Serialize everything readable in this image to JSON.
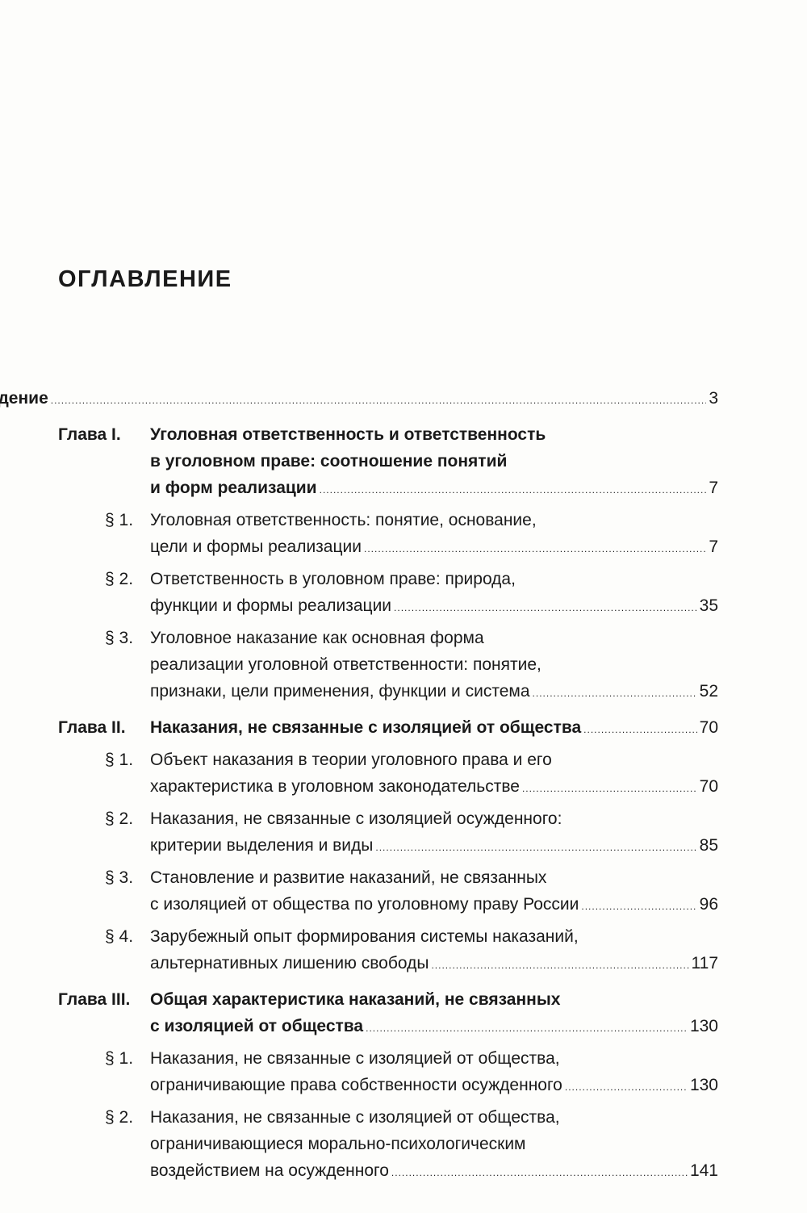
{
  "title": "ОГЛАВЛЕНИЕ",
  "entries": [
    {
      "type": "intro",
      "label": "",
      "lines": [
        "Введение"
      ],
      "page": "3"
    },
    {
      "type": "chapter",
      "label": "Глава I.",
      "lines": [
        "Уголовная ответственность и ответственность",
        "в уголовном праве: соотношение понятий",
        "и форм реализации"
      ],
      "page": "7"
    },
    {
      "type": "section",
      "label": "§ 1.",
      "lines": [
        "Уголовная ответственность: понятие, основание,",
        "цели и формы реализации"
      ],
      "page": "7"
    },
    {
      "type": "section",
      "label": "§ 2.",
      "lines": [
        "Ответственность в уголовном праве: природа,",
        "функции и формы реализации"
      ],
      "page": "35"
    },
    {
      "type": "section",
      "label": "§ 3.",
      "lines": [
        "Уголовное наказание как основная форма",
        "реализации уголовной ответственности: понятие,",
        "признаки, цели применения, функции и система"
      ],
      "page": "52"
    },
    {
      "type": "chapter",
      "label": "Глава II.",
      "lines": [
        "Наказания, не связанные с изоляцией от общества"
      ],
      "page": "70"
    },
    {
      "type": "section",
      "label": "§ 1.",
      "lines": [
        "Объект наказания в теории уголовного права и его",
        "характеристика в уголовном законодательстве"
      ],
      "page": "70"
    },
    {
      "type": "section",
      "label": "§ 2.",
      "lines": [
        "Наказания, не связанные с изоляцией осужденного:",
        "критерии выделения и виды"
      ],
      "page": "85"
    },
    {
      "type": "section",
      "label": "§ 3.",
      "lines": [
        "Становление и развитие наказаний, не связанных",
        "с изоляцией от общества по уголовному праву России"
      ],
      "page": "96"
    },
    {
      "type": "section",
      "label": "§ 4.",
      "lines": [
        "Зарубежный опыт формирования системы наказаний,",
        "альтернативных лишению свободы"
      ],
      "page": "117"
    },
    {
      "type": "chapter",
      "label": "Глава III.",
      "lines": [
        "Общая характеристика наказаний, не связанных",
        "с изоляцией от общества"
      ],
      "page": "130"
    },
    {
      "type": "section",
      "label": "§ 1.",
      "lines": [
        "Наказания, не связанные с изоляцией от общества,",
        "ограничивающие права собственности осужденного"
      ],
      "page": "130"
    },
    {
      "type": "section",
      "label": "§ 2.",
      "lines": [
        "Наказания, не связанные с изоляцией от общества,",
        "ограничивающиеся морально-психологическим",
        "воздействием на осужденного"
      ],
      "page": "141"
    }
  ]
}
